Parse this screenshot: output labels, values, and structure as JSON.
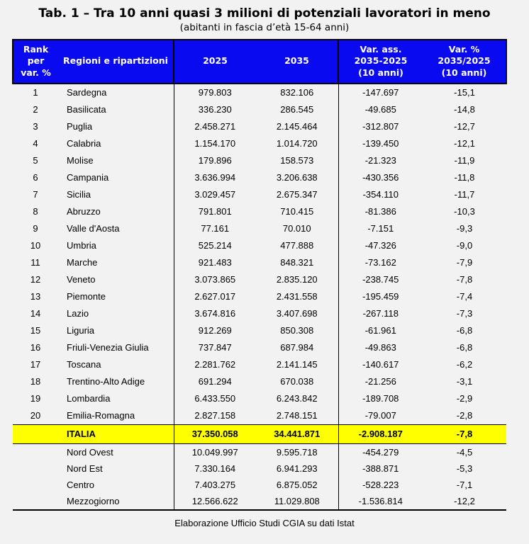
{
  "title": "Tab. 1 – Tra 10 anni quasi 3 milioni di potenziali lavoratori in meno",
  "subtitle": "(abitanti in fascia d’età 15-64 anni)",
  "footer": "Elaborazione Ufficio Studi CGIA su dati Istat",
  "colors": {
    "header_bg": "#0a0af0",
    "header_text": "#ffffff",
    "italia_row_bg": "#ffff00",
    "page_bg": "#f2f2f2",
    "border": "#000000"
  },
  "table": {
    "headers": {
      "rank": "Rank\nper\nvar. %",
      "region": "Regioni e ripartizioni",
      "y2025": "2025",
      "y2035": "2035",
      "var_ass": "Var. ass.\n2035-2025\n(10 anni)",
      "var_pct": "Var. %\n2035/2025\n(10 anni)"
    }
  },
  "chart_data": {
    "type": "table",
    "title": "Tab. 1 – Tra 10 anni quasi 3 milioni di potenziali lavoratori in meno",
    "subtitle": "(abitanti in fascia d’età 15-64 anni)",
    "columns": [
      "Rank per var. %",
      "Regioni e ripartizioni",
      "2025",
      "2035",
      "Var. ass. 2035-2025 (10 anni)",
      "Var. % 2035/2025 (10 anni)"
    ],
    "regions": [
      {
        "rank": "1",
        "region": "Sardegna",
        "y2025": "979.803",
        "y2035": "832.106",
        "var_ass": "-147.697",
        "var_pct": "-15,1"
      },
      {
        "rank": "2",
        "region": "Basilicata",
        "y2025": "336.230",
        "y2035": "286.545",
        "var_ass": "-49.685",
        "var_pct": "-14,8"
      },
      {
        "rank": "3",
        "region": "Puglia",
        "y2025": "2.458.271",
        "y2035": "2.145.464",
        "var_ass": "-312.807",
        "var_pct": "-12,7"
      },
      {
        "rank": "4",
        "region": "Calabria",
        "y2025": "1.154.170",
        "y2035": "1.014.720",
        "var_ass": "-139.450",
        "var_pct": "-12,1"
      },
      {
        "rank": "5",
        "region": "Molise",
        "y2025": "179.896",
        "y2035": "158.573",
        "var_ass": "-21.323",
        "var_pct": "-11,9"
      },
      {
        "rank": "6",
        "region": "Campania",
        "y2025": "3.636.994",
        "y2035": "3.206.638",
        "var_ass": "-430.356",
        "var_pct": "-11,8"
      },
      {
        "rank": "7",
        "region": "Sicilia",
        "y2025": "3.029.457",
        "y2035": "2.675.347",
        "var_ass": "-354.110",
        "var_pct": "-11,7"
      },
      {
        "rank": "8",
        "region": "Abruzzo",
        "y2025": "791.801",
        "y2035": "710.415",
        "var_ass": "-81.386",
        "var_pct": "-10,3"
      },
      {
        "rank": "9",
        "region": "Valle d'Aosta",
        "y2025": "77.161",
        "y2035": "70.010",
        "var_ass": "-7.151",
        "var_pct": "-9,3"
      },
      {
        "rank": "10",
        "region": "Umbria",
        "y2025": "525.214",
        "y2035": "477.888",
        "var_ass": "-47.326",
        "var_pct": "-9,0"
      },
      {
        "rank": "11",
        "region": "Marche",
        "y2025": "921.483",
        "y2035": "848.321",
        "var_ass": "-73.162",
        "var_pct": "-7,9"
      },
      {
        "rank": "12",
        "region": "Veneto",
        "y2025": "3.073.865",
        "y2035": "2.835.120",
        "var_ass": "-238.745",
        "var_pct": "-7,8"
      },
      {
        "rank": "13",
        "region": "Piemonte",
        "y2025": "2.627.017",
        "y2035": "2.431.558",
        "var_ass": "-195.459",
        "var_pct": "-7,4"
      },
      {
        "rank": "14",
        "region": "Lazio",
        "y2025": "3.674.816",
        "y2035": "3.407.698",
        "var_ass": "-267.118",
        "var_pct": "-7,3"
      },
      {
        "rank": "15",
        "region": "Liguria",
        "y2025": "912.269",
        "y2035": "850.308",
        "var_ass": "-61.961",
        "var_pct": "-6,8"
      },
      {
        "rank": "16",
        "region": "Friuli-Venezia Giulia",
        "y2025": "737.847",
        "y2035": "687.984",
        "var_ass": "-49.863",
        "var_pct": "-6,8"
      },
      {
        "rank": "17",
        "region": "Toscana",
        "y2025": "2.281.762",
        "y2035": "2.141.145",
        "var_ass": "-140.617",
        "var_pct": "-6,2"
      },
      {
        "rank": "18",
        "region": "Trentino-Alto Adige",
        "y2025": "691.294",
        "y2035": "670.038",
        "var_ass": "-21.256",
        "var_pct": "-3,1"
      },
      {
        "rank": "19",
        "region": "Lombardia",
        "y2025": "6.433.550",
        "y2035": "6.243.842",
        "var_ass": "-189.708",
        "var_pct": "-2,9"
      },
      {
        "rank": "20",
        "region": "Emilia-Romagna",
        "y2025": "2.827.158",
        "y2035": "2.748.151",
        "var_ass": "-79.007",
        "var_pct": "-2,8"
      }
    ],
    "italia": {
      "rank": "",
      "region": "ITALIA",
      "y2025": "37.350.058",
      "y2035": "34.441.871",
      "var_ass": "-2.908.187",
      "var_pct": "-7,8"
    },
    "ripartizioni": [
      {
        "rank": "",
        "region": "Nord Ovest",
        "y2025": "10.049.997",
        "y2035": "9.595.718",
        "var_ass": "-454.279",
        "var_pct": "-4,5"
      },
      {
        "rank": "",
        "region": "Nord Est",
        "y2025": "7.330.164",
        "y2035": "6.941.293",
        "var_ass": "-388.871",
        "var_pct": "-5,3"
      },
      {
        "rank": "",
        "region": "Centro",
        "y2025": "7.403.275",
        "y2035": "6.875.052",
        "var_ass": "-528.223",
        "var_pct": "-7,1"
      },
      {
        "rank": "",
        "region": "Mezzogiorno",
        "y2025": "12.566.622",
        "y2035": "11.029.808",
        "var_ass": "-1.536.814",
        "var_pct": "-12,2"
      }
    ]
  }
}
